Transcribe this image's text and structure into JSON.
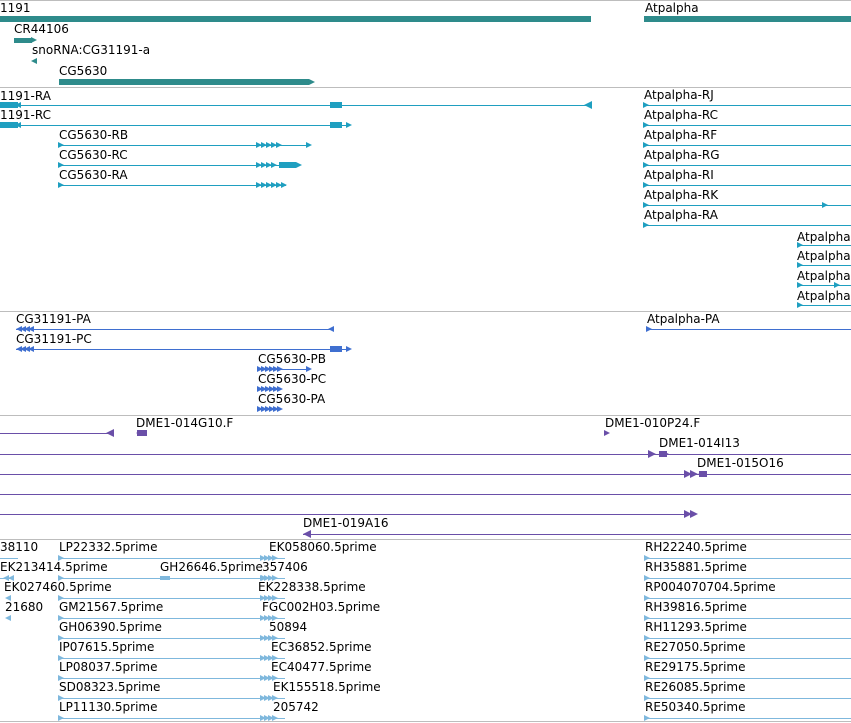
{
  "colors": {
    "gene": "#2e8b8b",
    "transcript": "#1f9fc0",
    "protein": "#3f6fd0",
    "clone": "#6a4fa8",
    "est": "#7fb8dd",
    "separator": "#bdbdbd"
  },
  "tracks": {
    "genes": {
      "labels": [
        "1191",
        "Atpalpha",
        "CR44106",
        "snoRNA:CG31191-a",
        "CG5630"
      ]
    },
    "transcripts": {
      "labels": [
        "1191-RA",
        "1191-RC",
        "CG5630-RB",
        "CG5630-RC",
        "CG5630-RA",
        "Atpalpha-RJ",
        "Atpalpha-RC",
        "Atpalpha-RF",
        "Atpalpha-RG",
        "Atpalpha-RI",
        "Atpalpha-RK",
        "Atpalpha-RA",
        "Atpalpha-",
        "Atpalpha-",
        "Atpalpha-",
        "Atpalpha-"
      ]
    },
    "proteins": {
      "labels": [
        "CG31191-PA",
        "CG31191-PC",
        "CG5630-PB",
        "CG5630-PC",
        "CG5630-PA",
        "Atpalpha-PA"
      ]
    },
    "clones": {
      "labels": [
        "DME1-014G10.F",
        "DME1-010P24.F",
        "DME1-014I13",
        "DME1-015O16",
        "DME1-019A16"
      ]
    },
    "ests": {
      "labels": [
        "38110",
        "LP22332.5prime",
        "EK058060.5prime",
        "RH22240.5prime",
        "EK213414.5prime",
        "GH26646.5prime",
        "357406",
        "RH35881.5prime",
        "EK027460.5prime",
        "EK228338.5prime",
        "RP004070704.5prime",
        "21680",
        "GM21567.5prime",
        "FGC002H03.5prime",
        "RH39816.5prime",
        "GH06390.5prime",
        "50894",
        "RH11293.5prime",
        "IP07615.5prime",
        "EC36852.5prime",
        "RE27050.5prime",
        "LP08037.5prime",
        "EC40477.5prime",
        "RE29175.5prime",
        "SD08323.5prime",
        "EK155518.5prime",
        "RE26085.5prime",
        "LP11130.5prime",
        "205742",
        "RE50340.5prime"
      ]
    }
  }
}
